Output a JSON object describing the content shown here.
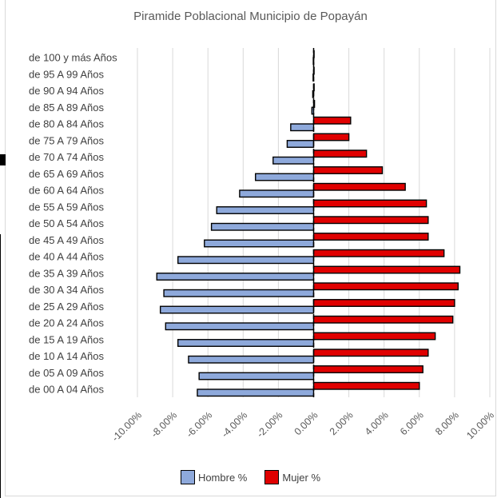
{
  "chart_data": {
    "type": "bar",
    "orientation": "horizontal",
    "title": "Piramide Poblacional Municipio de Popayán",
    "categories": [
      "de 100 y más Años",
      "de 95 A 99 Años",
      "de 90 A 94 Años",
      "de 85 A 89 Años",
      "de 80 A 84 Años",
      "de 75 A 79 Años",
      "de 70 A 74 Años",
      "de 65 A 69 Años",
      "de 60 A 64 Años",
      "de 55 A 59 Años",
      "de 50 A 54 Años",
      "de 45 A 49 Años",
      "de 40 A 44 Años",
      "de 35 A 39 Años",
      "de 30 A 34 Años",
      "de 25 A 29 Años",
      "de 20 A 24 Años",
      "de 15 A 19 Años",
      "de 10 A 14 Años",
      "de 05 A 09 Años",
      "de 00 A 04 Años"
    ],
    "series": [
      {
        "name": "Hombre %",
        "color": "#8ea9db",
        "values": [
          -0.02,
          -0.03,
          -0.05,
          -0.1,
          -1.3,
          -1.5,
          -2.3,
          -3.3,
          -4.2,
          -5.5,
          -5.8,
          -6.2,
          -7.7,
          -8.9,
          -8.5,
          -8.7,
          -8.4,
          -7.7,
          -7.1,
          -6.5,
          -6.6
        ]
      },
      {
        "name": "Mujer %",
        "color": "#e00000",
        "values": [
          0.02,
          0.02,
          0.03,
          0.05,
          2.1,
          2.0,
          3.0,
          3.9,
          5.2,
          6.4,
          6.5,
          6.5,
          7.4,
          8.3,
          8.2,
          8.0,
          7.9,
          6.9,
          6.5,
          6.2,
          6.0
        ]
      }
    ],
    "xlim": [
      -10,
      10
    ],
    "x_ticks": [
      "-10.00%",
      "-8.00%",
      "-6.00%",
      "-4.00%",
      "-2.00%",
      "0.00%",
      "2.00%",
      "4.00%",
      "6.00%",
      "8.00%",
      "10.00%"
    ],
    "grid": "vertical",
    "legend": "bottom",
    "colors": {
      "gridline": "#d9d9d9",
      "bar_border": "#000000"
    }
  }
}
